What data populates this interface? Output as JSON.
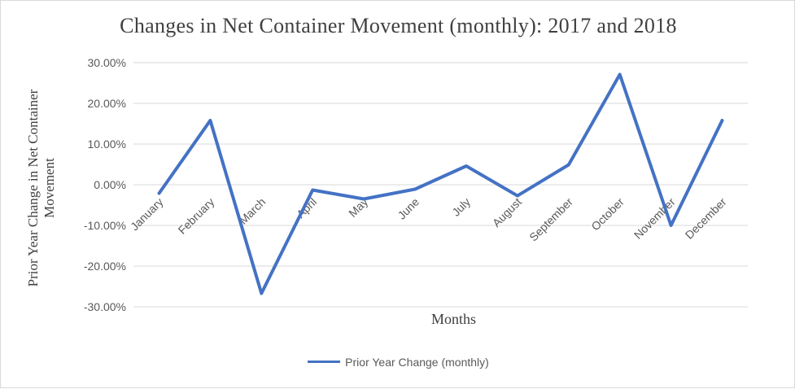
{
  "chart_data": {
    "type": "line",
    "title": "Changes  in Net Container Movement (monthly): 2017 and 2018",
    "xlabel": "Months",
    "ylabel": "Prior Year Change in Net Container Movement",
    "categories": [
      "January",
      "February",
      "March",
      "April",
      "May",
      "June",
      "July",
      "August",
      "September",
      "October",
      "November",
      "December"
    ],
    "series": [
      {
        "name": "Prior Year Change (monthly)",
        "color": "#4472C4",
        "values": [
          -2.1,
          15.8,
          -26.7,
          -1.3,
          -3.5,
          -1.1,
          4.6,
          -2.7,
          4.9,
          27.1,
          -10.0,
          15.8
        ]
      }
    ],
    "ylim": [
      -30,
      30
    ],
    "yticks": [
      30,
      20,
      10,
      0,
      -10,
      -20,
      -30
    ],
    "ytick_labels": [
      "30.00%",
      "20.00%",
      "10.00%",
      "0.00%",
      "-10.00%",
      "-20.00%",
      "-30.00%"
    ],
    "grid": true,
    "legend": "bottom"
  }
}
